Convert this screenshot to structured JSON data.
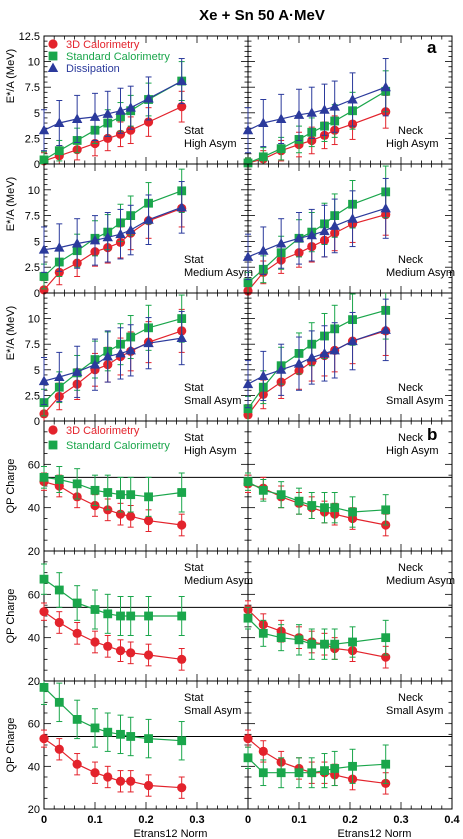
{
  "chart_data": {
    "type": "scatter",
    "title": "Xe + Sn  50 A·MeV",
    "xlabel": "Etrans12 Norm",
    "xlim": [
      0,
      0.4
    ],
    "xticks": [
      "0",
      "0.1",
      "0.2",
      "0.3",
      "0.4"
    ],
    "x": [
      0.0,
      0.03,
      0.065,
      0.1,
      0.125,
      0.15,
      0.17,
      0.205,
      0.27
    ],
    "panel_a": {
      "label": "a",
      "ylabel": "E*/A (MeV)",
      "ylim": [
        0,
        12.5
      ],
      "yticks": [
        "0",
        "2.5",
        "5",
        "7.5",
        "10",
        "12.5"
      ],
      "legend": [
        {
          "name": "3D Calorimetry",
          "color": "#e3232c",
          "marker": "circle"
        },
        {
          "name": "Standard Calorimetry",
          "color": "#1aa64b",
          "marker": "square"
        },
        {
          "name": "Dissipation",
          "color": "#2b3a9c",
          "marker": "triangle"
        }
      ],
      "panels": [
        {
          "id": "stat-high",
          "annot": [
            "Stat",
            "High Asym"
          ],
          "series": [
            {
              "values": [
                0.3,
                0.8,
                1.4,
                2.0,
                2.5,
                2.9,
                3.3,
                4.1,
                5.6
              ],
              "errors": [
                0.8,
                1.0,
                1.0,
                1.2,
                1.2,
                1.2,
                1.3,
                1.4,
                1.5
              ]
            },
            {
              "values": [
                0.4,
                1.3,
                2.3,
                3.3,
                4.0,
                4.6,
                5.2,
                6.3,
                8.1
              ],
              "errors": [
                0.8,
                1.0,
                1.2,
                1.3,
                1.3,
                1.4,
                1.5,
                1.6,
                1.9
              ]
            },
            {
              "values": [
                3.3,
                4.0,
                4.4,
                4.6,
                4.9,
                5.2,
                5.5,
                6.4,
                8.1
              ],
              "errors": [
                2.0,
                2.2,
                2.3,
                2.3,
                2.2,
                2.2,
                2.1,
                2.1,
                2.2
              ]
            }
          ]
        },
        {
          "id": "neck-high",
          "annot": [
            "Neck",
            "High Asym"
          ],
          "series": [
            {
              "values": [
                0.1,
                0.5,
                1.3,
                1.9,
                2.3,
                2.8,
                3.3,
                3.9,
                5.1
              ],
              "errors": [
                0.5,
                0.8,
                1.0,
                1.2,
                1.3,
                1.3,
                1.4,
                1.5,
                1.6
              ]
            },
            {
              "values": [
                0.1,
                0.7,
                1.5,
                2.4,
                3.1,
                3.7,
                4.2,
                5.2,
                7.1
              ],
              "errors": [
                0.5,
                0.9,
                1.1,
                1.3,
                1.4,
                1.5,
                1.6,
                1.8,
                2.0
              ]
            },
            {
              "values": [
                3.3,
                4.0,
                4.4,
                4.8,
                5.0,
                5.3,
                5.6,
                6.3,
                7.5
              ],
              "errors": [
                2.2,
                2.3,
                2.4,
                2.5,
                2.5,
                2.5,
                2.5,
                2.6,
                2.8
              ]
            }
          ]
        },
        {
          "id": "stat-medium",
          "annot": [
            "Stat",
            "Medium Asym"
          ],
          "series": [
            {
              "values": [
                0.3,
                2.0,
                2.9,
                4.0,
                4.4,
                4.9,
                5.8,
                7.0,
                8.2
              ],
              "errors": [
                0.9,
                1.2,
                1.3,
                1.4,
                1.5,
                1.5,
                1.6,
                1.7,
                1.8
              ]
            },
            {
              "values": [
                1.6,
                3.0,
                4.1,
                5.3,
                5.9,
                6.8,
                7.5,
                8.7,
                9.9
              ],
              "errors": [
                1.2,
                1.4,
                1.6,
                1.7,
                1.7,
                1.8,
                1.9,
                2.0,
                2.1
              ]
            },
            {
              "values": [
                4.2,
                4.4,
                4.8,
                5.1,
                5.4,
                5.7,
                6.1,
                7.1,
                8.3
              ],
              "errors": [
                2.2,
                2.3,
                2.4,
                2.4,
                2.4,
                2.4,
                2.4,
                2.4,
                2.5
              ]
            }
          ]
        },
        {
          "id": "neck-medium",
          "annot": [
            "Neck",
            "Medium Asym"
          ],
          "series": [
            {
              "values": [
                0.2,
                2.0,
                3.2,
                3.9,
                4.5,
                5.1,
                5.8,
                6.7,
                7.6
              ],
              "errors": [
                0.8,
                1.1,
                1.3,
                1.4,
                1.5,
                1.6,
                1.7,
                1.8,
                2.0
              ]
            },
            {
              "values": [
                1.0,
                2.3,
                3.9,
                5.3,
                5.9,
                6.7,
                7.5,
                8.6,
                9.8
              ],
              "errors": [
                1.0,
                1.3,
                1.6,
                1.8,
                1.9,
                2.0,
                2.1,
                2.3,
                2.5
              ]
            },
            {
              "values": [
                3.5,
                4.1,
                4.8,
                5.3,
                5.6,
                6.0,
                6.5,
                7.2,
                8.2
              ],
              "errors": [
                2.2,
                2.3,
                2.4,
                2.5,
                2.5,
                2.5,
                2.6,
                2.7,
                2.9
              ]
            }
          ]
        },
        {
          "id": "stat-small",
          "annot": [
            "Stat",
            "Small Asym"
          ],
          "series": [
            {
              "values": [
                0.7,
                2.4,
                3.6,
                5.0,
                5.5,
                6.3,
                6.8,
                7.7,
                8.8
              ],
              "errors": [
                1.0,
                1.3,
                1.5,
                1.6,
                1.7,
                1.8,
                1.9,
                2.0,
                2.1
              ]
            },
            {
              "values": [
                1.8,
                3.3,
                4.7,
                6.0,
                6.8,
                7.5,
                8.2,
                9.1,
                10.0
              ],
              "errors": [
                1.3,
                1.5,
                1.7,
                1.8,
                1.9,
                2.0,
                2.1,
                2.2,
                2.3
              ]
            },
            {
              "values": [
                3.9,
                4.3,
                4.8,
                5.5,
                6.3,
                6.6,
                6.9,
                7.6,
                8.1
              ],
              "errors": [
                2.3,
                2.4,
                2.5,
                2.5,
                2.5,
                2.5,
                2.5,
                2.5,
                2.6
              ]
            }
          ]
        },
        {
          "id": "neck-small",
          "annot": [
            "Neck",
            "Small Asym"
          ],
          "series": [
            {
              "values": [
                0.6,
                2.6,
                3.8,
                4.9,
                5.8,
                6.4,
                6.9,
                7.8,
                8.8
              ],
              "errors": [
                1.0,
                1.4,
                1.6,
                1.8,
                1.9,
                2.0,
                2.1,
                2.2,
                2.4
              ]
            },
            {
              "values": [
                1.2,
                3.3,
                5.4,
                6.6,
                7.5,
                8.3,
                9.0,
                9.9,
                10.8
              ],
              "errors": [
                1.2,
                1.6,
                1.8,
                2.0,
                2.1,
                2.2,
                2.3,
                2.5,
                2.8
              ]
            },
            {
              "values": [
                3.6,
                4.4,
                5.0,
                5.6,
                6.2,
                6.6,
                6.9,
                7.8,
                8.9
              ],
              "errors": [
                2.3,
                2.4,
                2.5,
                2.6,
                2.6,
                2.7,
                2.7,
                2.8,
                3.0
              ]
            }
          ]
        }
      ]
    },
    "panel_b": {
      "label": "b",
      "ylabel": "QP Charge",
      "ylim": [
        20,
        80
      ],
      "yticks": [
        "20",
        "40",
        "60"
      ],
      "reference_line": 54,
      "legend": [
        {
          "name": "3D Calorimetry",
          "color": "#e3232c",
          "marker": "circle"
        },
        {
          "name": "Standard Calorimetry",
          "color": "#1aa64b",
          "marker": "square"
        }
      ],
      "panels": [
        {
          "id": "stat-high",
          "annot": [
            "Stat",
            "High Asym"
          ],
          "series": [
            {
              "values": [
                52,
                50,
                45,
                41,
                39,
                37,
                36,
                34,
                32
              ],
              "errors": [
                4,
                5,
                5,
                5,
                5,
                5,
                5,
                5,
                5
              ]
            },
            {
              "values": [
                54,
                53,
                51,
                48,
                47,
                46,
                46,
                45,
                47
              ],
              "errors": [
                5,
                6,
                7,
                7,
                8,
                8,
                8,
                9,
                9
              ]
            }
          ]
        },
        {
          "id": "neck-high",
          "annot": [
            "Neck",
            "High Asym"
          ],
          "series": [
            {
              "values": [
                51,
                49,
                45,
                42,
                40,
                38,
                37,
                35,
                32
              ],
              "errors": [
                4,
                5,
                5,
                5,
                5,
                5,
                5,
                5,
                5
              ]
            },
            {
              "values": [
                52,
                48,
                46,
                43,
                41,
                40,
                40,
                38,
                39
              ],
              "errors": [
                4,
                5,
                6,
                6,
                6,
                7,
                7,
                7,
                7
              ]
            }
          ]
        },
        {
          "id": "stat-medium",
          "annot": [
            "Stat",
            "Medium Asym"
          ],
          "series": [
            {
              "values": [
                52,
                47,
                42,
                38,
                36,
                34,
                33,
                32,
                30
              ],
              "errors": [
                4,
                5,
                5,
                5,
                5,
                5,
                5,
                5,
                5
              ]
            },
            {
              "values": [
                67,
                62,
                56,
                53,
                51,
                50,
                50,
                50,
                50
              ],
              "errors": [
                7,
                8,
                8,
                9,
                9,
                9,
                9,
                9,
                9
              ]
            }
          ]
        },
        {
          "id": "neck-medium",
          "annot": [
            "Neck",
            "Medium Asym"
          ],
          "series": [
            {
              "values": [
                53,
                46,
                43,
                40,
                38,
                37,
                35,
                34,
                31
              ],
              "errors": [
                4,
                5,
                5,
                5,
                5,
                5,
                5,
                5,
                5
              ]
            },
            {
              "values": [
                49,
                42,
                40,
                39,
                37,
                37,
                37,
                38,
                40
              ],
              "errors": [
                5,
                6,
                6,
                7,
                7,
                7,
                7,
                7,
                8
              ]
            }
          ]
        },
        {
          "id": "stat-small",
          "annot": [
            "Stat",
            "Small Asym"
          ],
          "series": [
            {
              "values": [
                53,
                48,
                41,
                37,
                35,
                33,
                33,
                31,
                30
              ],
              "errors": [
                4,
                5,
                5,
                5,
                5,
                5,
                5,
                5,
                5
              ]
            },
            {
              "values": [
                77,
                70,
                62,
                58,
                56,
                55,
                54,
                53,
                52
              ],
              "errors": [
                8,
                9,
                9,
                9,
                9,
                9,
                9,
                9,
                9
              ]
            }
          ]
        },
        {
          "id": "neck-small",
          "annot": [
            "Neck",
            "Small Asym"
          ],
          "series": [
            {
              "values": [
                53,
                47,
                42,
                39,
                37,
                37,
                36,
                34,
                32
              ],
              "errors": [
                4,
                5,
                5,
                5,
                5,
                5,
                5,
                5,
                5
              ]
            },
            {
              "values": [
                44,
                37,
                37,
                37,
                37,
                38,
                39,
                40,
                41
              ],
              "errors": [
                5,
                6,
                7,
                7,
                7,
                8,
                8,
                8,
                9
              ]
            }
          ]
        }
      ]
    }
  }
}
